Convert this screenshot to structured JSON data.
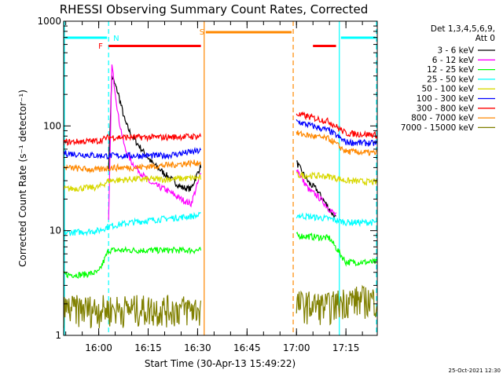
{
  "chart_data": {
    "type": "line",
    "title": "RHESSI Observing Summary Count Rates, Corrected",
    "xlabel": "Start Time (30-Apr-13 15:49:22)",
    "ylabel": "Corrected Count Rate (s⁻¹ detector⁻¹)",
    "ylog": true,
    "ylim": [
      1,
      1000
    ],
    "xlim": [
      "15:49:22",
      "17:24:30"
    ],
    "x_ticks": [
      "16:00",
      "16:15",
      "16:30",
      "16:45",
      "17:00",
      "17:15"
    ],
    "y_ticks": [
      "1",
      "10",
      "100",
      "1000"
    ],
    "grid": false,
    "footer_date": "25-Oct-2021 12:30",
    "legend": {
      "position": "right",
      "header_line1": "Det 1,3,4,5,6,9,",
      "header_line2": "Att 0"
    },
    "annotations": {
      "flare_label": "F",
      "flare_color": "#ff0000",
      "flare_intervals": [
        [
          "16:03",
          "16:31"
        ],
        [
          "17:05",
          "17:12"
        ]
      ],
      "night_label": "N",
      "night_color": "#00ffff",
      "night_intervals": [
        [
          "15:49:22",
          "16:03"
        ],
        [
          "17:13",
          "17:24:30"
        ]
      ],
      "saa_label": "S",
      "saa_color": "#ff8800",
      "saa_intervals": [
        [
          "16:32",
          "16:59"
        ]
      ]
    },
    "series": [
      {
        "name": "3 - 6 keV",
        "color": "#000000",
        "x": [
          "16:03",
          "16:04",
          "16:06",
          "16:08",
          "16:10",
          "16:13",
          "16:16",
          "16:20",
          "16:25",
          "16:28",
          "16:31",
          "17:00",
          "17:02",
          "17:04",
          "17:06",
          "17:08",
          "17:10",
          "17:12"
        ],
        "y": [
          40,
          300,
          200,
          110,
          80,
          60,
          45,
          35,
          26,
          25,
          42,
          45,
          35,
          28,
          25,
          20,
          16,
          13
        ]
      },
      {
        "name": "6 - 12 keV",
        "color": "#ff00ff",
        "x": [
          "16:03",
          "16:04",
          "16:06",
          "16:08",
          "16:10",
          "16:13",
          "16:16",
          "16:20",
          "16:25",
          "16:28",
          "16:31",
          "17:00",
          "17:02",
          "17:04",
          "17:06",
          "17:08",
          "17:10",
          "17:12"
        ],
        "y": [
          12,
          380,
          120,
          60,
          45,
          35,
          28,
          25,
          20,
          18,
          35,
          40,
          30,
          24,
          22,
          19,
          16,
          14
        ]
      },
      {
        "name": "12 - 25 keV",
        "color": "#00ff00",
        "x": [
          "15:49:22",
          "15:55",
          "16:00",
          "16:03",
          "16:10",
          "16:20",
          "16:31",
          "17:00",
          "17:10",
          "17:15",
          "17:24:30"
        ],
        "y": [
          3.8,
          3.8,
          4,
          6.5,
          6.5,
          6.5,
          6.5,
          9,
          8.5,
          5,
          5
        ]
      },
      {
        "name": "25 - 50 keV",
        "color": "#00ffff",
        "x": [
          "15:49:22",
          "16:00",
          "16:03",
          "16:10",
          "16:20",
          "16:31",
          "17:00",
          "17:10",
          "17:15",
          "17:24:30"
        ],
        "y": [
          9.5,
          10,
          11,
          12,
          13,
          14,
          14,
          13,
          12,
          12
        ]
      },
      {
        "name": "50 - 100 keV",
        "color": "#d8d800",
        "x": [
          "15:49:22",
          "16:00",
          "16:03",
          "16:10",
          "16:20",
          "16:31",
          "17:00",
          "17:10",
          "17:15",
          "17:24:30"
        ],
        "y": [
          25,
          26,
          30,
          31,
          31,
          32,
          34,
          33,
          30,
          29
        ]
      },
      {
        "name": "100 - 300 keV",
        "color": "#0000ff",
        "x": [
          "15:49:22",
          "16:00",
          "16:03",
          "16:10",
          "16:20",
          "16:31",
          "17:00",
          "17:10",
          "17:15",
          "17:24:30"
        ],
        "y": [
          55,
          52,
          52,
          52,
          52,
          58,
          110,
          90,
          70,
          68
        ]
      },
      {
        "name": "300 - 800 keV",
        "color": "#ff0000",
        "x": [
          "15:49:22",
          "16:00",
          "16:03",
          "16:10",
          "16:20",
          "16:31",
          "17:00",
          "17:10",
          "17:15",
          "17:24:30"
        ],
        "y": [
          70,
          72,
          78,
          78,
          78,
          80,
          130,
          110,
          85,
          82
        ]
      },
      {
        "name": "800 - 7000 keV",
        "color": "#ff8800",
        "x": [
          "15:49:22",
          "16:00",
          "16:03",
          "16:10",
          "16:20",
          "16:31",
          "17:00",
          "17:10",
          "17:15",
          "17:24:30"
        ],
        "y": [
          40,
          38,
          40,
          40,
          42,
          45,
          85,
          75,
          57,
          55
        ]
      },
      {
        "name": "7000 - 15000 keV",
        "color": "#808000",
        "x": [
          "15:49:22",
          "16:00",
          "16:03",
          "16:10",
          "16:20",
          "16:31",
          "17:00",
          "17:10",
          "17:15",
          "17:24:30"
        ],
        "y": [
          1.8,
          1.8,
          1.8,
          1.8,
          1.8,
          1.8,
          2.0,
          1.9,
          2.2,
          2.2
        ]
      }
    ]
  }
}
